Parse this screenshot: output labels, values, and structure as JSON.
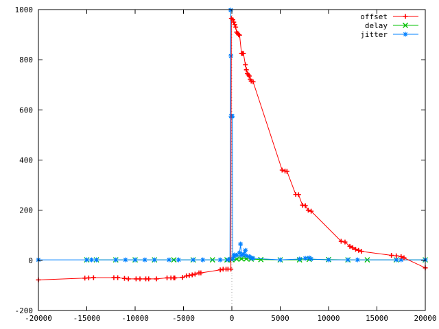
{
  "chart_data": {
    "type": "line",
    "title": "",
    "xlabel": "",
    "ylabel": "",
    "xlim": [
      -20000,
      20000
    ],
    "ylim": [
      -200,
      1000
    ],
    "x_ticks": [
      -20000,
      -15000,
      -10000,
      -5000,
      0,
      5000,
      10000,
      15000,
      20000
    ],
    "y_ticks": [
      -200,
      0,
      200,
      400,
      600,
      800,
      1000
    ],
    "x_tick_labels": [
      "-20000",
      "-15000",
      "-10000",
      "-5000",
      "0",
      "5000",
      "10000",
      "15000",
      "20000"
    ],
    "y_tick_labels": [
      "-200",
      "0",
      "200",
      "400",
      "600",
      "800",
      "1000"
    ],
    "grid": false,
    "legend": "top-right",
    "zero_line_x": 0,
    "series": [
      {
        "name": "offset",
        "color": "#ff0000",
        "marker": "plus",
        "points": [
          [
            -20000,
            -78
          ],
          [
            -15200,
            -71
          ],
          [
            -14800,
            -70
          ],
          [
            -14300,
            -69
          ],
          [
            -12200,
            -69
          ],
          [
            -11800,
            -69
          ],
          [
            -11100,
            -72
          ],
          [
            -10700,
            -74
          ],
          [
            -9900,
            -74
          ],
          [
            -9500,
            -74
          ],
          [
            -8900,
            -74
          ],
          [
            -8600,
            -74
          ],
          [
            -7800,
            -74
          ],
          [
            -6700,
            -70
          ],
          [
            -6300,
            -70
          ],
          [
            -6000,
            -70
          ],
          [
            -5900,
            -70
          ],
          [
            -5100,
            -68
          ],
          [
            -4700,
            -62
          ],
          [
            -4400,
            -60
          ],
          [
            -4100,
            -58
          ],
          [
            -3800,
            -55
          ],
          [
            -3400,
            -50
          ],
          [
            -3200,
            -50
          ],
          [
            -1200,
            -38
          ],
          [
            -900,
            -35
          ],
          [
            -600,
            -35
          ],
          [
            -400,
            -35
          ],
          [
            -100,
            -35
          ],
          [
            -50,
            965
          ],
          [
            100,
            960
          ],
          [
            200,
            950
          ],
          [
            300,
            940
          ],
          [
            400,
            930
          ],
          [
            500,
            910
          ],
          [
            600,
            905
          ],
          [
            700,
            900
          ],
          [
            800,
            898
          ],
          [
            1000,
            825
          ],
          [
            1100,
            825
          ],
          [
            1200,
            825
          ],
          [
            1400,
            780
          ],
          [
            1500,
            760
          ],
          [
            1600,
            745
          ],
          [
            1700,
            740
          ],
          [
            1800,
            735
          ],
          [
            1900,
            722
          ],
          [
            2000,
            715
          ],
          [
            2200,
            712
          ],
          [
            5200,
            360
          ],
          [
            5500,
            356
          ],
          [
            5700,
            355
          ],
          [
            6600,
            263
          ],
          [
            6900,
            262
          ],
          [
            7300,
            220
          ],
          [
            7600,
            218
          ],
          [
            7900,
            200
          ],
          [
            8200,
            196
          ],
          [
            11300,
            76
          ],
          [
            11700,
            73
          ],
          [
            12200,
            56
          ],
          [
            12500,
            50
          ],
          [
            12800,
            44
          ],
          [
            13100,
            40
          ],
          [
            13400,
            36
          ],
          [
            16500,
            20
          ],
          [
            17000,
            18
          ],
          [
            17500,
            15
          ],
          [
            17800,
            10
          ],
          [
            20000,
            -30
          ]
        ]
      },
      {
        "name": "delay",
        "color": "#00c000",
        "marker": "x",
        "points": [
          [
            -15000,
            2
          ],
          [
            -14000,
            2
          ],
          [
            -12000,
            2
          ],
          [
            -10000,
            2
          ],
          [
            -8000,
            2
          ],
          [
            -6000,
            2
          ],
          [
            -4000,
            2
          ],
          [
            -2000,
            2
          ],
          [
            -500,
            2
          ],
          [
            0,
            2
          ],
          [
            500,
            5
          ],
          [
            1000,
            6
          ],
          [
            1500,
            6
          ],
          [
            2000,
            5
          ],
          [
            3000,
            3
          ],
          [
            5000,
            2
          ],
          [
            7000,
            2
          ],
          [
            8000,
            4
          ],
          [
            10000,
            3
          ],
          [
            12000,
            2
          ],
          [
            14000,
            2
          ],
          [
            17000,
            2
          ],
          [
            20000,
            2
          ]
        ]
      },
      {
        "name": "jitter",
        "color": "#0080ff",
        "marker": "star",
        "points": [
          [
            -20000,
            2
          ],
          [
            -15000,
            2
          ],
          [
            -14500,
            2
          ],
          [
            -14000,
            2
          ],
          [
            -12000,
            2
          ],
          [
            -11000,
            2
          ],
          [
            -10000,
            2
          ],
          [
            -9000,
            2
          ],
          [
            -8000,
            2
          ],
          [
            -6500,
            2
          ],
          [
            -5500,
            2
          ],
          [
            -4000,
            2
          ],
          [
            -3000,
            2
          ],
          [
            -1200,
            2
          ],
          [
            -400,
            2
          ],
          [
            -200,
            5
          ],
          [
            -120,
            998
          ],
          [
            -100,
            815
          ],
          [
            -80,
            575
          ],
          [
            0,
            575
          ],
          [
            50,
            575
          ],
          [
            100,
            5
          ],
          [
            200,
            18
          ],
          [
            300,
            22
          ],
          [
            500,
            20
          ],
          [
            800,
            30
          ],
          [
            900,
            65
          ],
          [
            1000,
            20
          ],
          [
            1200,
            25
          ],
          [
            1400,
            40
          ],
          [
            1500,
            18
          ],
          [
            1800,
            15
          ],
          [
            2000,
            10
          ],
          [
            2200,
            8
          ],
          [
            5000,
            2
          ],
          [
            7000,
            5
          ],
          [
            7600,
            8
          ],
          [
            8000,
            10
          ],
          [
            8200,
            5
          ],
          [
            10000,
            2
          ],
          [
            12000,
            2
          ],
          [
            13000,
            2
          ],
          [
            17000,
            2
          ],
          [
            17500,
            2
          ],
          [
            20000,
            2
          ]
        ]
      }
    ]
  }
}
